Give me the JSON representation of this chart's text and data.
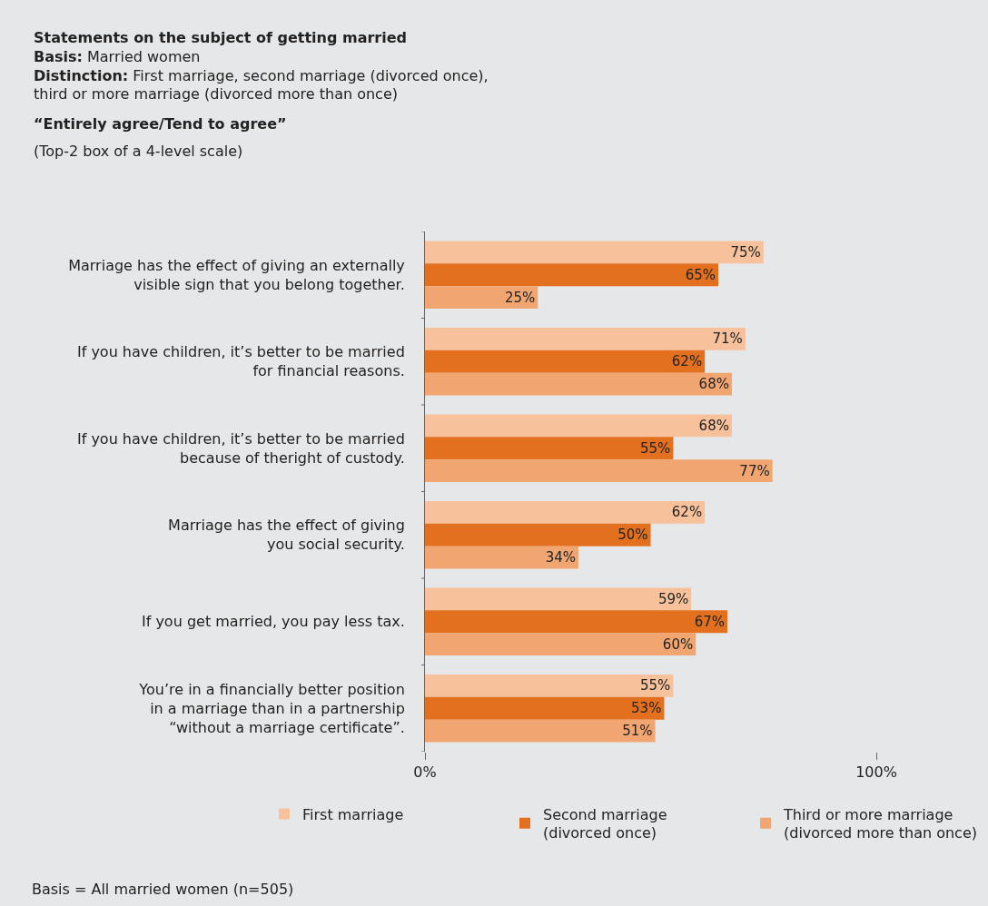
{
  "chart_data": {
    "type": "bar",
    "orientation": "horizontal",
    "title": "Statements on the subject of getting married",
    "subtitle": "Basis: Married women\nDistinction: First marriage, second marriage (divorced once),\nthird or more marriage (divorced more than once)",
    "annotations": [
      "“Entirely agree/Tend to agree”",
      "(Top-2 box of a 4-level scale)",
      "Basis = All married women (n=505)"
    ],
    "categories": [
      "Marriage has the effect of giving an externally\nvisible sign that you belong together.",
      "If you have children, it’s better to be married\nfor financial reasons.",
      "If you have children, it’s better to be married\nbecause of theright of custody.",
      "Marriage has the effect of giving\nyou social security.",
      "If you get married, you pay less tax.",
      "You’re in a financially better position\nin a marriage than in a partnership\n“without a marriage certificate”."
    ],
    "series": [
      {
        "name": "First marriage",
        "color": "#f6c19b",
        "values": [
          75,
          71,
          68,
          62,
          59,
          55
        ],
        "value_labels": [
          "75%",
          "71%",
          "68%",
          "62%",
          "59%",
          "55%"
        ]
      },
      {
        "name": "Second marriage\n(divorced once)",
        "color": "#e3701f",
        "values": [
          65,
          62,
          55,
          50,
          67,
          53
        ],
        "value_labels": [
          "65%",
          "62%",
          "55%",
          "50%",
          "67%",
          "53%"
        ]
      },
      {
        "name": "Third or more marriage\n(divorced more than once)",
        "color": "#f1a672",
        "values": [
          25,
          68,
          77,
          34,
          60,
          51
        ],
        "value_labels": [
          "25%",
          "68%",
          "77%",
          "34%",
          "60%",
          "51%"
        ]
      }
    ],
    "xlim": [
      0,
      100
    ],
    "xticks": [
      {
        "value": 0,
        "label": "0%"
      },
      {
        "value": 100,
        "label": "100%"
      }
    ],
    "grid": false,
    "legend": "bottom"
  }
}
